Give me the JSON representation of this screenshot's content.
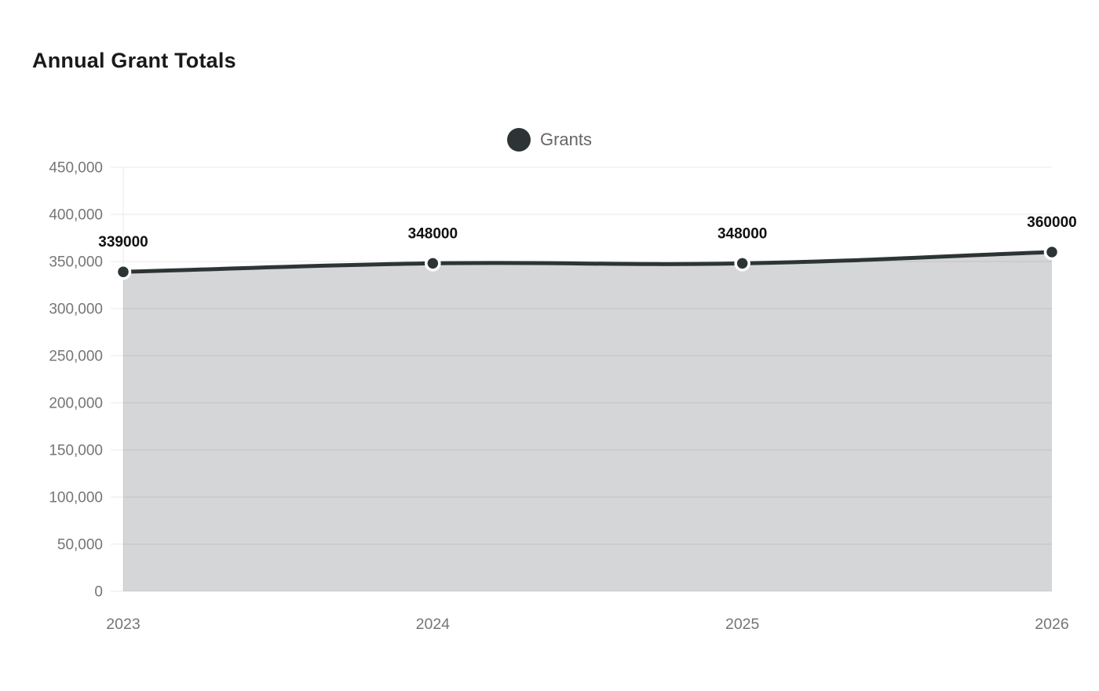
{
  "title": "Annual Grant Totals",
  "legend": {
    "label": "Grants",
    "marker_color": "#2d3436"
  },
  "chart_data": {
    "type": "area",
    "title": "Annual Grant Totals",
    "x": [
      "2023",
      "2024",
      "2025",
      "2026"
    ],
    "series": [
      {
        "name": "Grants",
        "values": [
          339000,
          348000,
          348000,
          360000
        ]
      }
    ],
    "data_labels": [
      "339000",
      "348000",
      "348000",
      "360000"
    ],
    "xlabel": "",
    "ylabel": "",
    "ylim": [
      0,
      450000
    ],
    "ytick_step": 50000,
    "ytick_labels": [
      "0",
      "50,000",
      "100,000",
      "150,000",
      "200,000",
      "250,000",
      "300,000",
      "350,000",
      "400,000",
      "450,000"
    ],
    "grid": true,
    "legend_position": "top-center",
    "colors": {
      "line": "#2d3436",
      "fill": "rgba(45,52,54,0.2)",
      "grid": "#e8e8e8",
      "axis_labels": "#757575",
      "data_labels": "#111111",
      "point_border": "#ffffff"
    },
    "style": {
      "line_width": 5,
      "point_radius": 8.5,
      "point_border_width": 3.5,
      "tension": 0.4
    }
  }
}
